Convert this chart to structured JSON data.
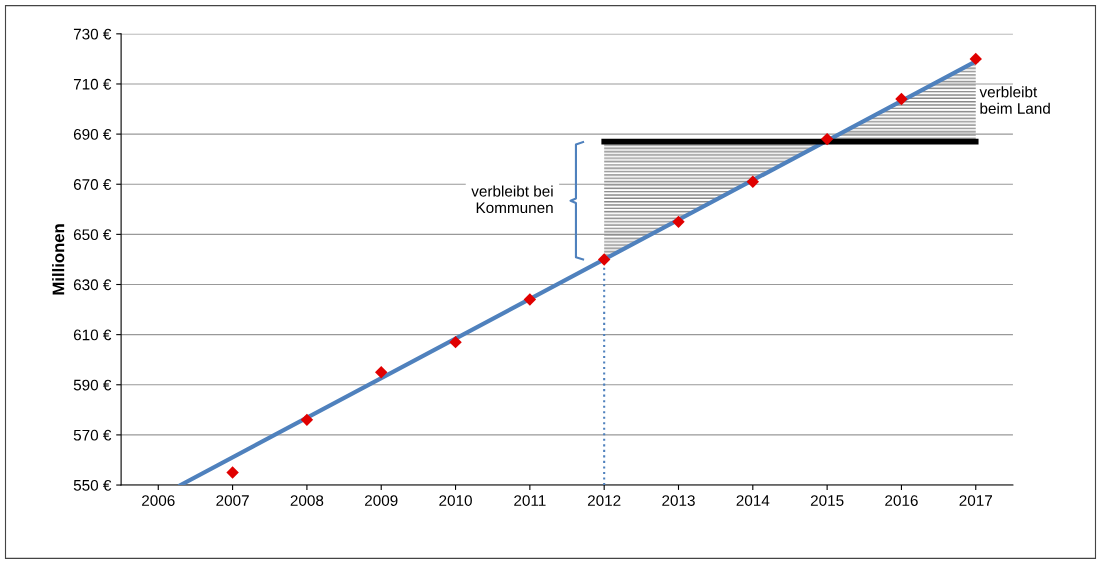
{
  "chart_data": {
    "type": "scatter",
    "ylabel": "Millionen",
    "x": [
      2007,
      2008,
      2009,
      2010,
      2011,
      2012,
      2013,
      2014,
      2015,
      2016,
      2017
    ],
    "series": [
      {
        "color": "#e00000",
        "marker": "diamond",
        "values": [
          555,
          576,
          595,
          607,
          624,
          640,
          655,
          671,
          688,
          704,
          720
        ]
      },
      {
        "type": "line",
        "color": "#4f81bd",
        "x": [
          2006.3,
          2017
        ],
        "values": [
          550,
          719
        ]
      },
      {
        "type": "line",
        "color": "#000000",
        "x": [
          2012,
          2015,
          2017
        ],
        "values": [
          687,
          687,
          687
        ],
        "lower": [
          640,
          687,
          687
        ],
        "upper": [
          687,
          687,
          719
        ]
      },
      {
        "type": "line",
        "color": "#4f81bd",
        "line_style": "dotted",
        "x": [
          2012,
          2012
        ],
        "values": [
          550,
          640
        ]
      }
    ],
    "xlim": [
      2005.5,
      2017.5
    ],
    "xticks": [
      2006,
      2007,
      2008,
      2009,
      2010,
      2011,
      2012,
      2013,
      2014,
      2015,
      2016,
      2017
    ],
    "ylim": [
      550,
      730
    ],
    "yticks": [
      {
        "value": 550,
        "label": "550 €"
      },
      {
        "value": 570,
        "label": "570 €"
      },
      {
        "value": 590,
        "label": "590 €"
      },
      {
        "value": 610,
        "label": "610 €"
      },
      {
        "value": 630,
        "label": "630 €"
      },
      {
        "value": 650,
        "label": "650 €"
      },
      {
        "value": 670,
        "label": "670 €"
      },
      {
        "value": 690,
        "label": "690 €"
      },
      {
        "value": 710,
        "label": "710 €"
      },
      {
        "value": 730,
        "label": "730 €"
      }
    ],
    "grid": "y",
    "legend": false,
    "annotations": [
      "verbleibt bei\nKommunen",
      {
        "text": "verbleibt\nbeim Land",
        "x": 2017,
        "y": 703
      }
    ]
  }
}
